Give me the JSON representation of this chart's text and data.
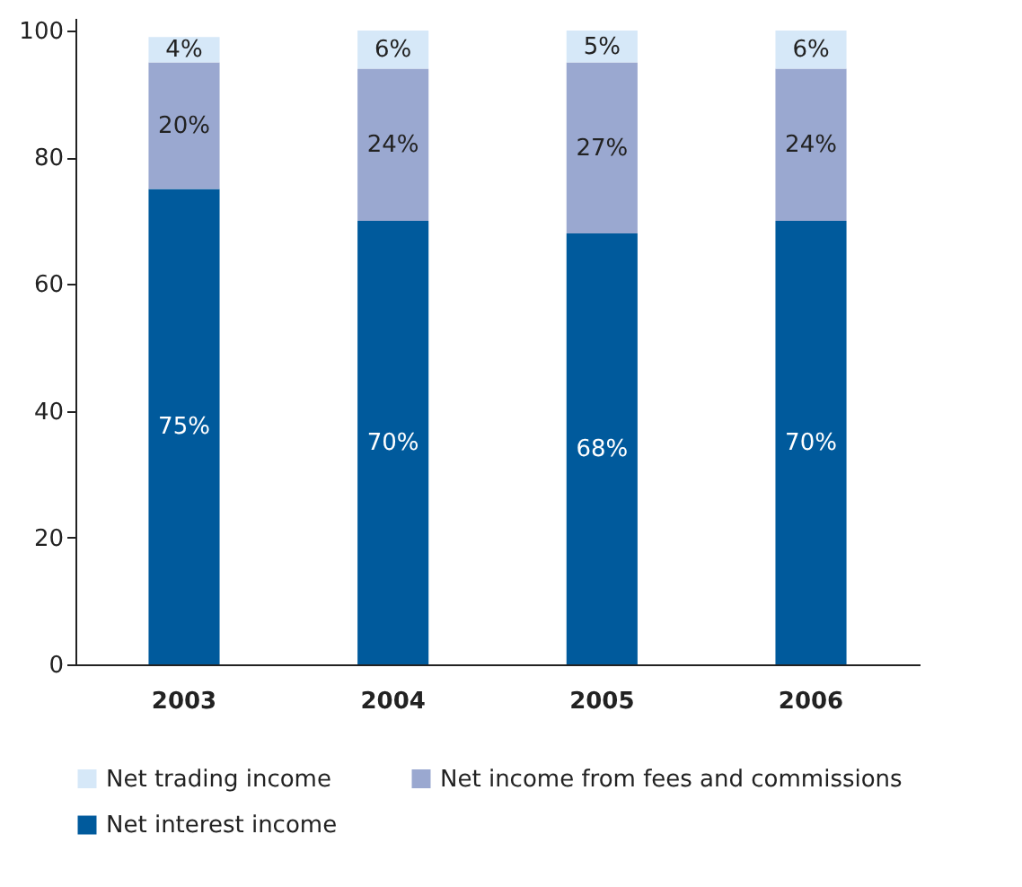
{
  "chart_data": {
    "type": "bar",
    "stacked": true,
    "categories": [
      "2003",
      "2004",
      "2005",
      "2006"
    ],
    "series": [
      {
        "name": "Net interest income",
        "color": "#005a9c",
        "values": [
          75,
          70,
          68,
          70
        ],
        "value_labels": [
          "75%",
          "70%",
          "68%",
          "70%"
        ]
      },
      {
        "name": "Net income from fees and commissions",
        "color": "#9aa8d0",
        "values": [
          20,
          24,
          27,
          24
        ],
        "value_labels": [
          "20%",
          "24%",
          "27%",
          "24%"
        ]
      },
      {
        "name": "Net trading income",
        "color": "#d6e8f8",
        "values": [
          4,
          6,
          5,
          6
        ],
        "value_labels": [
          "4%",
          "6%",
          "5%",
          "6%"
        ]
      }
    ],
    "ylim": [
      0,
      102
    ],
    "yticks": [
      0,
      20,
      40,
      60,
      80,
      100
    ],
    "grid": false,
    "legend": "bottom"
  }
}
